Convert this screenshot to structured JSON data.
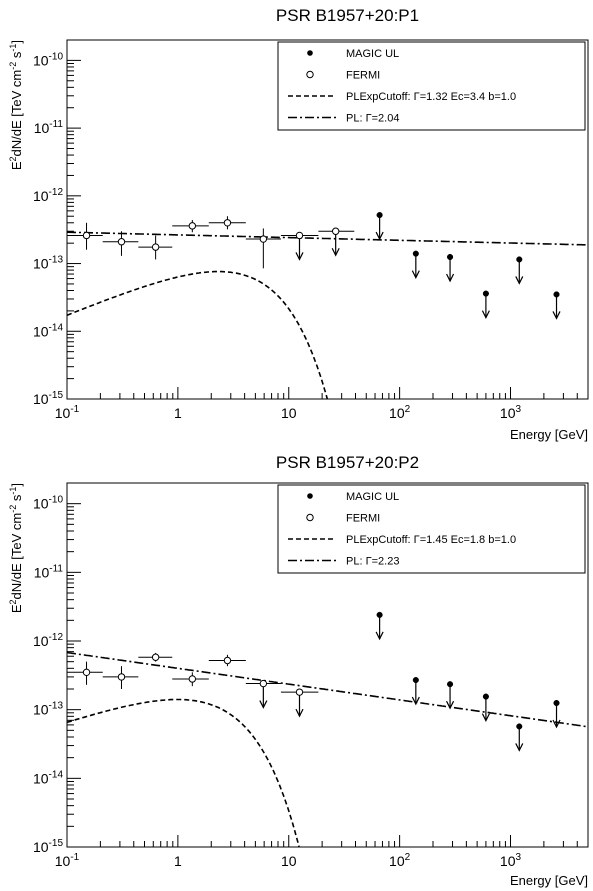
{
  "chart_data": [
    {
      "type": "scatter",
      "title": "PSR B1957+20:P1",
      "xlabel": "Energy [GeV]",
      "ylabel_main": "E",
      "ylabel_sup1": "2",
      "ylabel_mid": "dN/dE [TeV cm",
      "ylabel_sup2": "-2",
      "ylabel_mid2": " s",
      "ylabel_sup3": "-1",
      "ylabel_end": "]",
      "x_scale": "log",
      "y_scale": "log",
      "xlim": [
        0.1,
        5000
      ],
      "ylim": [
        1e-15,
        2e-10
      ],
      "x_ticks": [
        {
          "v": 0.1,
          "base": "10",
          "exp": "-1"
        },
        {
          "v": 1,
          "base": "1",
          "exp": ""
        },
        {
          "v": 10,
          "base": "10",
          "exp": ""
        },
        {
          "v": 100,
          "base": "10",
          "exp": "2"
        },
        {
          "v": 1000,
          "base": "10",
          "exp": "3"
        }
      ],
      "y_ticks": [
        {
          "v": 1e-15,
          "base": "10",
          "exp": "-15"
        },
        {
          "v": 1e-14,
          "base": "10",
          "exp": "-14"
        },
        {
          "v": 1e-13,
          "base": "10",
          "exp": "-13"
        },
        {
          "v": 1e-12,
          "base": "10",
          "exp": "-12"
        },
        {
          "v": 1e-11,
          "base": "10",
          "exp": "-11"
        },
        {
          "v": 1e-10,
          "base": "10",
          "exp": "-10"
        }
      ],
      "legend": {
        "position": "top-right",
        "entries": [
          {
            "name": "MAGIC UL",
            "style": "filled-marker"
          },
          {
            "name": "FERMI",
            "style": "open-marker"
          },
          {
            "name": "PLExpCutoff:  Γ=1.32  Ec=3.4  b=1.0",
            "style": "dashed"
          },
          {
            "name": "PL:  Γ=2.04",
            "style": "dashdot"
          }
        ]
      },
      "series": [
        {
          "name": "FERMI",
          "marker": "open",
          "points": [
            {
              "x": 0.15,
              "y": 2.6e-13,
              "xlo": 0.1,
              "xhi": 0.21,
              "ylo": 1.6e-13,
              "yhi": 4e-13
            },
            {
              "x": 0.31,
              "y": 2.1e-13,
              "xlo": 0.21,
              "xhi": 0.44,
              "ylo": 1.3e-13,
              "yhi": 3e-13
            },
            {
              "x": 0.63,
              "y": 1.75e-13,
              "xlo": 0.44,
              "xhi": 0.89,
              "ylo": 1.15e-13,
              "yhi": 2.6e-13
            },
            {
              "x": 1.35,
              "y": 3.6e-13,
              "xlo": 0.89,
              "xhi": 1.9,
              "ylo": 2.9e-13,
              "yhi": 4.4e-13
            },
            {
              "x": 2.8,
              "y": 4e-13,
              "xlo": 1.9,
              "xhi": 4.1,
              "ylo": 3.2e-13,
              "yhi": 5e-13
            },
            {
              "x": 5.9,
              "y": 2.3e-13,
              "xlo": 4.1,
              "xhi": 8.5,
              "ylo": 8.5e-14,
              "yhi": 3.3e-13
            },
            {
              "x": 12.5,
              "y": 2.6e-13,
              "xlo": 8.5,
              "xhi": 18.5,
              "ylo": null,
              "yhi": null,
              "ul": true
            },
            {
              "x": 26.5,
              "y": 3e-13,
              "xlo": 18.5,
              "xhi": 39,
              "ylo": null,
              "yhi": null,
              "ul": true
            }
          ]
        },
        {
          "name": "MAGIC UL",
          "marker": "filled",
          "points": [
            {
              "x": 66,
              "y": 5.2e-13
            },
            {
              "x": 140,
              "y": 1.4e-13
            },
            {
              "x": 285,
              "y": 1.25e-13
            },
            {
              "x": 600,
              "y": 3.6e-14
            },
            {
              "x": 1200,
              "y": 1.15e-13
            },
            {
              "x": 2600,
              "y": 3.5e-14
            }
          ]
        }
      ],
      "models": [
        {
          "name": "PLExpCutoff",
          "gamma": 1.32,
          "ec": 3.4,
          "b": 1.0,
          "norm": 8.5e-14,
          "style": "dashed"
        },
        {
          "name": "PL",
          "gamma": 2.04,
          "norm": 2.65e-13,
          "style": "dashdot"
        }
      ]
    },
    {
      "type": "scatter",
      "title": "PSR B1957+20:P2",
      "xlabel": "Energy [GeV]",
      "ylabel_main": "E",
      "ylabel_sup1": "2",
      "ylabel_mid": "dN/dE [TeV cm",
      "ylabel_sup2": "-2",
      "ylabel_mid2": " s",
      "ylabel_sup3": "-1",
      "ylabel_end": "]",
      "x_scale": "log",
      "y_scale": "log",
      "xlim": [
        0.1,
        5000
      ],
      "ylim": [
        1e-15,
        2e-10
      ],
      "x_ticks": [
        {
          "v": 0.1,
          "base": "10",
          "exp": "-1"
        },
        {
          "v": 1,
          "base": "1",
          "exp": ""
        },
        {
          "v": 10,
          "base": "10",
          "exp": ""
        },
        {
          "v": 100,
          "base": "10",
          "exp": "2"
        },
        {
          "v": 1000,
          "base": "10",
          "exp": "3"
        }
      ],
      "y_ticks": [
        {
          "v": 1e-15,
          "base": "10",
          "exp": "-15"
        },
        {
          "v": 1e-14,
          "base": "10",
          "exp": "-14"
        },
        {
          "v": 1e-13,
          "base": "10",
          "exp": "-13"
        },
        {
          "v": 1e-12,
          "base": "10",
          "exp": "-12"
        },
        {
          "v": 1e-11,
          "base": "10",
          "exp": "-11"
        },
        {
          "v": 1e-10,
          "base": "10",
          "exp": "-10"
        }
      ],
      "legend": {
        "position": "top-right",
        "entries": [
          {
            "name": "MAGIC UL",
            "style": "filled-marker"
          },
          {
            "name": "FERMI",
            "style": "open-marker"
          },
          {
            "name": "PLExpCutoff:  Γ=1.45  Ec=1.8  b=1.0",
            "style": "dashed"
          },
          {
            "name": "PL:  Γ=2.23",
            "style": "dashdot"
          }
        ]
      },
      "series": [
        {
          "name": "FERMI",
          "marker": "open",
          "points": [
            {
              "x": 0.15,
              "y": 3.5e-13,
              "xlo": 0.1,
              "xhi": 0.21,
              "ylo": 2.3e-13,
              "yhi": 5e-13
            },
            {
              "x": 0.31,
              "y": 3e-13,
              "xlo": 0.21,
              "xhi": 0.44,
              "ylo": 2e-13,
              "yhi": 4.3e-13
            },
            {
              "x": 0.63,
              "y": 5.8e-13,
              "xlo": 0.44,
              "xhi": 0.89,
              "ylo": 5e-13,
              "yhi": 6.7e-13
            },
            {
              "x": 1.35,
              "y": 2.8e-13,
              "xlo": 0.89,
              "xhi": 1.9,
              "ylo": 2.2e-13,
              "yhi": 3.5e-13
            },
            {
              "x": 2.8,
              "y": 5.2e-13,
              "xlo": 1.9,
              "xhi": 4.1,
              "ylo": 4.3e-13,
              "yhi": 6.3e-13
            },
            {
              "x": 5.9,
              "y": 2.4e-13,
              "xlo": 4.1,
              "xhi": 8.5,
              "ylo": null,
              "yhi": null,
              "ul": true
            },
            {
              "x": 12.5,
              "y": 1.8e-13,
              "xlo": 8.5,
              "xhi": 18.5,
              "ylo": null,
              "yhi": null,
              "ul": true
            }
          ]
        },
        {
          "name": "MAGIC UL",
          "marker": "filled",
          "points": [
            {
              "x": 66,
              "y": 2.4e-12
            },
            {
              "x": 140,
              "y": 2.7e-13
            },
            {
              "x": 285,
              "y": 2.35e-13
            },
            {
              "x": 600,
              "y": 1.55e-13
            },
            {
              "x": 1200,
              "y": 5.7e-14
            },
            {
              "x": 2600,
              "y": 1.25e-13
            }
          ]
        }
      ],
      "models": [
        {
          "name": "PLExpCutoff",
          "gamma": 1.45,
          "ec": 1.8,
          "b": 1.0,
          "norm": 2.45e-13,
          "style": "dashed"
        },
        {
          "name": "PL",
          "gamma": 2.23,
          "norm": 4e-13,
          "style": "dashdot"
        }
      ]
    }
  ]
}
